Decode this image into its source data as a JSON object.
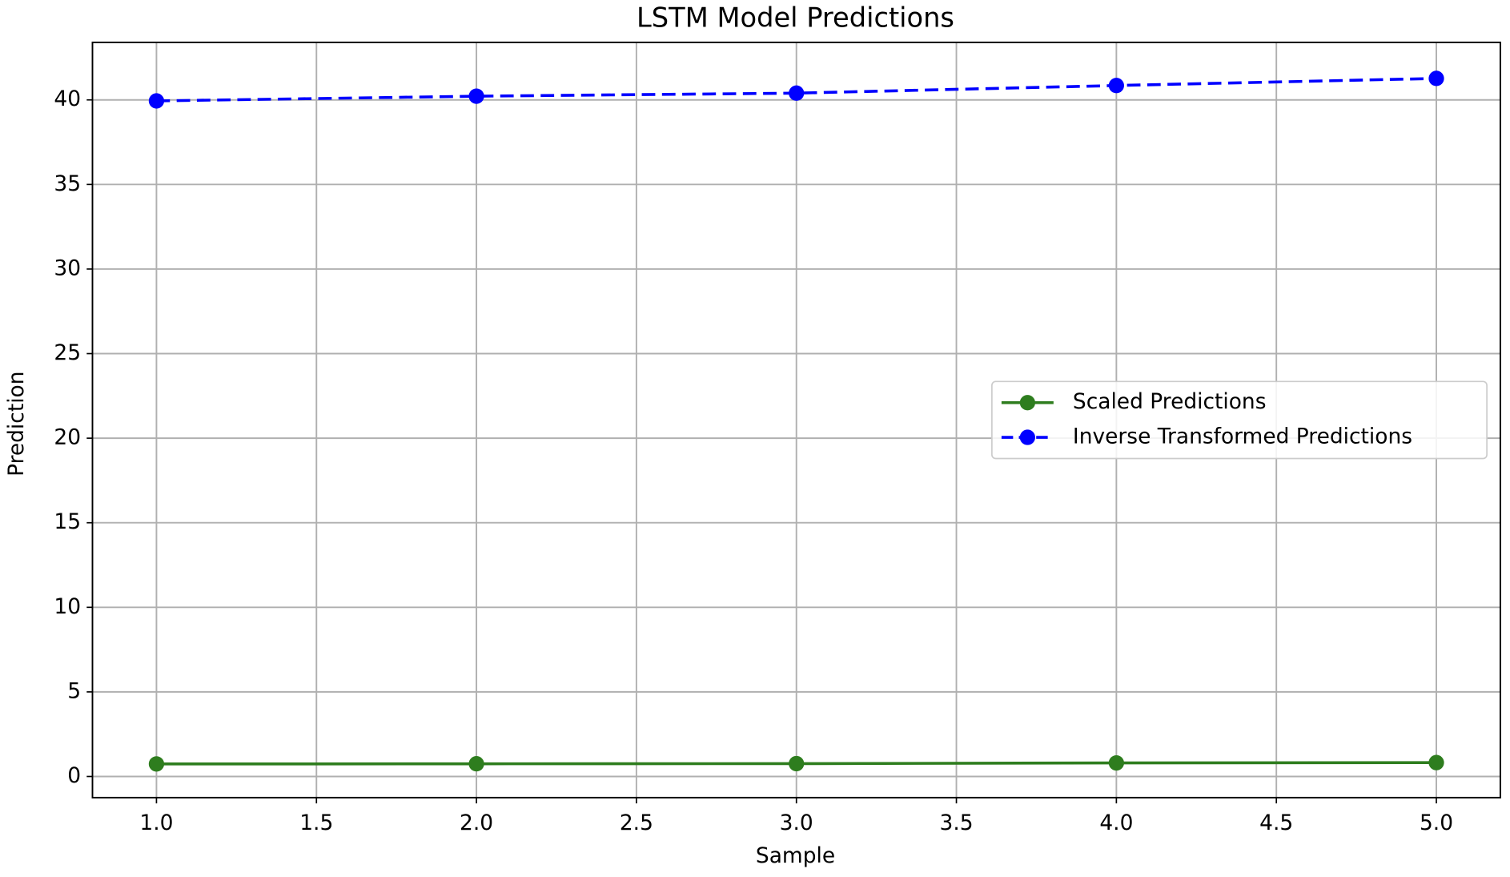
{
  "chart_data": {
    "type": "line",
    "title": "LSTM Model Predictions",
    "xlabel": "Sample",
    "ylabel": "Prediction",
    "x": [
      1,
      2,
      3,
      4,
      5
    ],
    "series": [
      {
        "name": "Scaled Predictions",
        "color": "#2e7d1e",
        "linestyle": "solid",
        "values": [
          0.74,
          0.75,
          0.76,
          0.8,
          0.82
        ]
      },
      {
        "name": "Inverse Transformed Predictions",
        "color": "#0000ff",
        "linestyle": "dashed",
        "values": [
          39.94,
          40.22,
          40.4,
          40.85,
          41.27
        ]
      }
    ],
    "xlim": [
      0.8,
      5.2
    ],
    "ylim": [
      -1.25,
      43.4
    ],
    "xticks": [
      {
        "value": 1,
        "label": "1.0"
      },
      {
        "value": 1.5,
        "label": "1.5"
      },
      {
        "value": 2,
        "label": "2.0"
      },
      {
        "value": 2.5,
        "label": "2.5"
      },
      {
        "value": 3,
        "label": "3.0"
      },
      {
        "value": 3.5,
        "label": "3.5"
      },
      {
        "value": 4,
        "label": "4.0"
      },
      {
        "value": 4.5,
        "label": "4.5"
      },
      {
        "value": 5,
        "label": "5.0"
      }
    ],
    "yticks": [
      0,
      5,
      10,
      15,
      20,
      25,
      30,
      35,
      40
    ],
    "grid": true,
    "legend": "center right"
  }
}
